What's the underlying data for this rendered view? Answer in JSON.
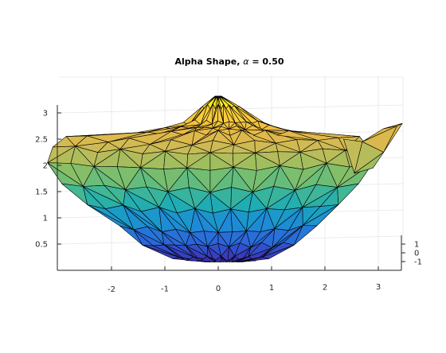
{
  "window": {
    "title": "Alpha Shape, α = 0.50"
  },
  "chart_data": {
    "type": "surface",
    "subtype": "3d-alpha-shape",
    "title_prefix": "Alpha Shape,",
    "title_symbol": "α",
    "title_value": "= 0.50",
    "alpha": 0.5,
    "xlabel": "",
    "ylabel": "",
    "zlabel": "",
    "x_ticks": [
      "-2",
      "-1",
      "0",
      "1",
      "2",
      "3"
    ],
    "y_ticks": [
      "1",
      "0",
      "-1"
    ],
    "z_ticks": [
      "0.5",
      "1",
      "1.5",
      "2",
      "2.5",
      "3"
    ],
    "xlim": [
      -3,
      3.4
    ],
    "ylim": [
      -2,
      2
    ],
    "zlim": [
      0,
      3.5
    ],
    "grid": true,
    "colormap": [
      "#3e26a8",
      "#2f5fd8",
      "#1e88d8",
      "#1aaab8",
      "#4dbb8a",
      "#8fbf61",
      "#c6bb58",
      "#e8b846",
      "#fbcf3a",
      "#f9fb15"
    ]
  }
}
